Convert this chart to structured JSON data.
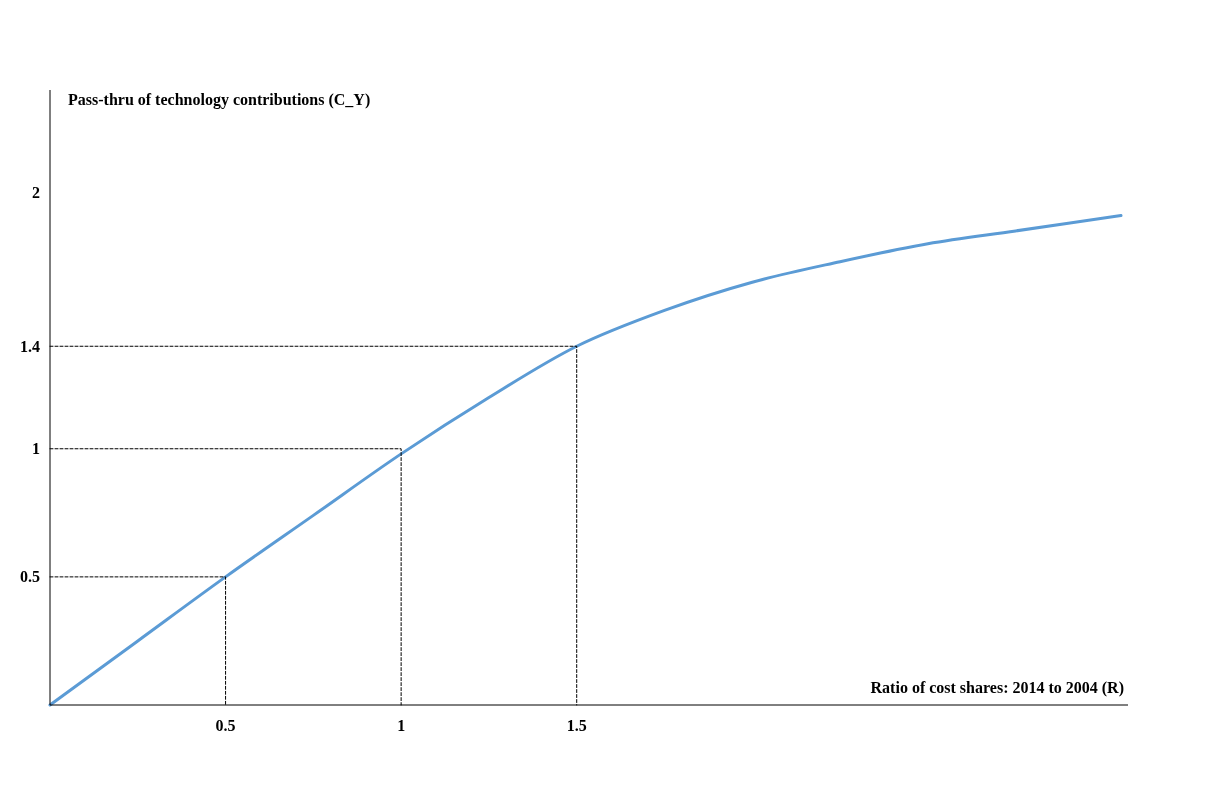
{
  "chart_data": {
    "type": "line",
    "xlabel": "Ratio of cost shares: 2014 to 2004 (R)",
    "ylabel": "Pass-thru of technology contributions (C_Y)",
    "xlim": [
      0,
      3.07
    ],
    "ylim": [
      0,
      2.4
    ],
    "xticks": [
      0.5,
      1,
      1.5
    ],
    "yticks": [
      0.5,
      1,
      1.4,
      2
    ],
    "grid": false,
    "marker": "none",
    "series": [
      {
        "color": "#5b9bd5",
        "x": [
          0,
          0.25,
          0.5,
          0.75,
          1,
          1.25,
          1.5,
          1.75,
          2,
          2.25,
          2.5,
          2.75,
          3.05
        ],
        "values": [
          0,
          0.25,
          0.5,
          0.74,
          0.98,
          1.2,
          1.4,
          1.54,
          1.65,
          1.73,
          1.8,
          1.85,
          1.91
        ]
      },
      {
        "color": "#000000",
        "line_style": "dashed",
        "x": [
          0,
          0.5,
          0.5
        ],
        "values": [
          0.5,
          0.5,
          0
        ]
      },
      {
        "color": "#000000",
        "line_style": "dashed",
        "x": [
          0,
          1,
          1
        ],
        "values": [
          1,
          1,
          0
        ]
      },
      {
        "color": "#000000",
        "line_style": "dashed",
        "x": [
          0,
          1.5,
          1.5
        ],
        "values": [
          1.4,
          1.4,
          0
        ]
      }
    ]
  }
}
